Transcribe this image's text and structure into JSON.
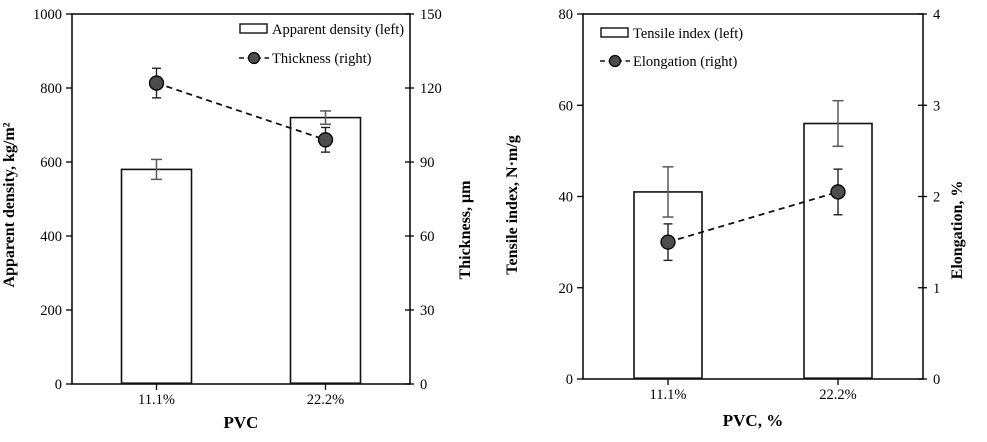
{
  "figure": {
    "background": "#ffffff",
    "description": "Two side-by-side dual-axis column charts with overlaid dashed line series and error bars"
  },
  "colors": {
    "bar_fill": "#ffffff",
    "bar_stroke": "#111111",
    "bar_error": "#595959",
    "line_stroke": "#111111",
    "marker_fill": "#4d4d4d",
    "marker_stroke": "#000000",
    "marker_error": "#222222",
    "axis": "#000000",
    "text": "#000000"
  },
  "chart_data": [
    {
      "type": "bar",
      "subtype": "bar+line dual y-axis with error bars",
      "categories": [
        "11.1%",
        "22.2%"
      ],
      "xlabel": "PVC",
      "left_axis": {
        "label": "Apparent density, kg/m²",
        "min": 0,
        "max": 1000,
        "ticks": [
          0,
          200,
          400,
          600,
          800,
          1000
        ]
      },
      "right_axis": {
        "label": "Thickness, μm",
        "min": 0,
        "max": 150,
        "ticks": [
          0,
          30,
          60,
          90,
          120,
          150
        ]
      },
      "series": [
        {
          "name": "Apparent density (left)",
          "type": "bar",
          "axis": "left",
          "values": [
            580,
            720
          ],
          "errors": [
            27,
            18
          ]
        },
        {
          "name": "Thickness (right)",
          "type": "line",
          "axis": "right",
          "values": [
            122,
            99
          ],
          "errors": [
            6,
            5
          ]
        }
      ],
      "legend_position": "top-right",
      "grid": false
    },
    {
      "type": "bar",
      "subtype": "bar+line dual y-axis with error bars",
      "categories": [
        "11.1%",
        "22.2%"
      ],
      "xlabel": "PVC, %",
      "left_axis": {
        "label": "Tensile index, N·m/g",
        "min": 0,
        "max": 80,
        "ticks": [
          0,
          20,
          40,
          60,
          80
        ]
      },
      "right_axis": {
        "label": "Elongation, %",
        "min": 0,
        "max": 4,
        "ticks": [
          0,
          1,
          2,
          3,
          4
        ]
      },
      "series": [
        {
          "name": "Tensile index (left)",
          "type": "bar",
          "axis": "left",
          "values": [
            41,
            56
          ],
          "errors": [
            5.5,
            5
          ]
        },
        {
          "name": "Elongation (right)",
          "type": "line",
          "axis": "right",
          "values": [
            1.5,
            2.05
          ],
          "errors": [
            0.2,
            0.25
          ]
        }
      ],
      "legend_position": "top-left",
      "grid": false
    }
  ]
}
